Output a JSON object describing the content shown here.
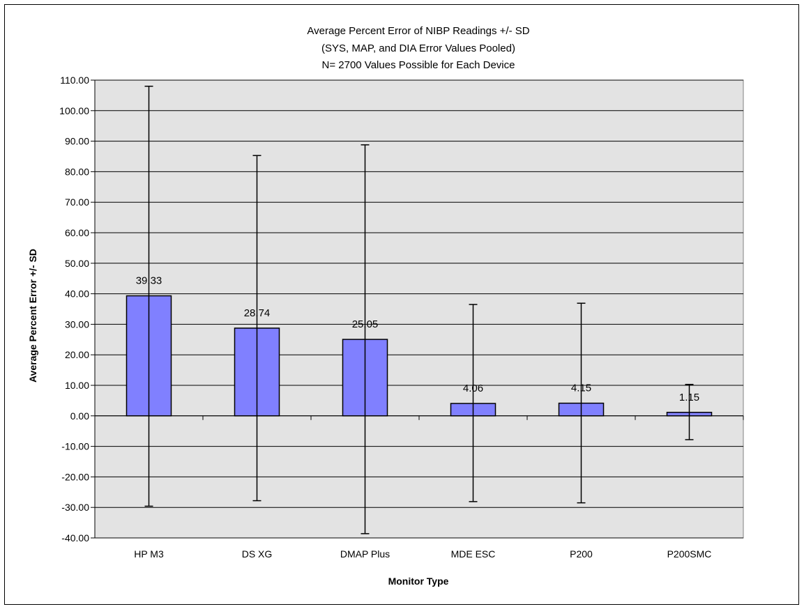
{
  "chart_data": {
    "type": "bar",
    "title_lines": [
      "Average Percent Error of NIBP Readings +/- SD",
      "(SYS, MAP, and DIA Error Values Pooled)",
      "N= 2700 Values Possible for Each Device"
    ],
    "xlabel": "Monitor Type",
    "ylabel": "Average Percent Error +/- SD",
    "categories": [
      "HP M3",
      "DS XG",
      "DMAP Plus",
      "MDE ESC",
      "P200",
      "P200SMC"
    ],
    "values": [
      39.33,
      28.74,
      25.05,
      4.06,
      4.15,
      1.15
    ],
    "value_labels": [
      "39.33",
      "28.74",
      "25.05",
      "4.06",
      "4.15",
      "1.15"
    ],
    "error_upper": [
      108.0,
      85.3,
      88.8,
      36.5,
      36.9,
      10.3
    ],
    "error_lower": [
      -29.6,
      -27.8,
      -38.6,
      -28.1,
      -28.5,
      -7.8
    ],
    "ylim": [
      -40,
      110
    ],
    "yticks": [
      "110.00",
      "100.00",
      "90.00",
      "80.00",
      "70.00",
      "60.00",
      "50.00",
      "40.00",
      "30.00",
      "20.00",
      "10.00",
      "0.00",
      "-10.00",
      "-20.00",
      "-30.00",
      "-40.00"
    ],
    "grid": true,
    "colors": {
      "bar": "#8080FF",
      "plot_bg": "#E3E3E3",
      "grid": "#000000"
    }
  }
}
